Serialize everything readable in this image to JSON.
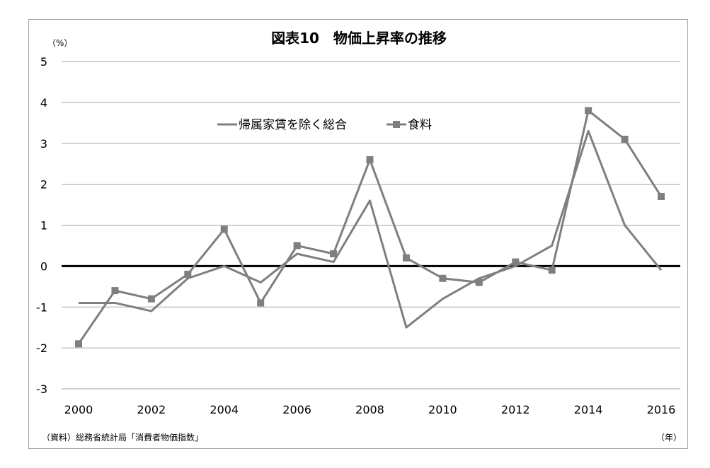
{
  "chart_data": {
    "type": "line",
    "title": "図表10　物価上昇率の推移",
    "y_unit": "（%）",
    "x_unit": "（年）",
    "source": "（資料）総務省統計局「消費者物価指数」",
    "x": [
      2000,
      2001,
      2002,
      2003,
      2004,
      2005,
      2006,
      2007,
      2008,
      2009,
      2010,
      2011,
      2012,
      2013,
      2014,
      2015,
      2016
    ],
    "x_tick_labels": [
      "2000",
      "2002",
      "2004",
      "2006",
      "2008",
      "2010",
      "2012",
      "2014",
      "2016"
    ],
    "y_tick_labels": [
      "5",
      "4",
      "3",
      "2",
      "1",
      "0",
      "-1",
      "-2",
      "-3"
    ],
    "ylim": [
      -3,
      5
    ],
    "grid": true,
    "legend_position": "top-center",
    "series": [
      {
        "name": "帰属家賃を除く総合",
        "marker": "none",
        "color": "#7f7f7f",
        "values": [
          -0.9,
          -0.9,
          -1.1,
          -0.3,
          0.0,
          -0.4,
          0.3,
          0.1,
          1.6,
          -1.5,
          -0.8,
          -0.3,
          0.0,
          0.5,
          3.3,
          1.0,
          -0.1
        ]
      },
      {
        "name": "食料",
        "marker": "square",
        "color": "#7f7f7f",
        "values": [
          -1.9,
          -0.6,
          -0.8,
          -0.2,
          0.9,
          -0.9,
          0.5,
          0.3,
          2.6,
          0.2,
          -0.3,
          -0.4,
          0.1,
          -0.1,
          3.8,
          3.1,
          1.7
        ]
      }
    ]
  }
}
